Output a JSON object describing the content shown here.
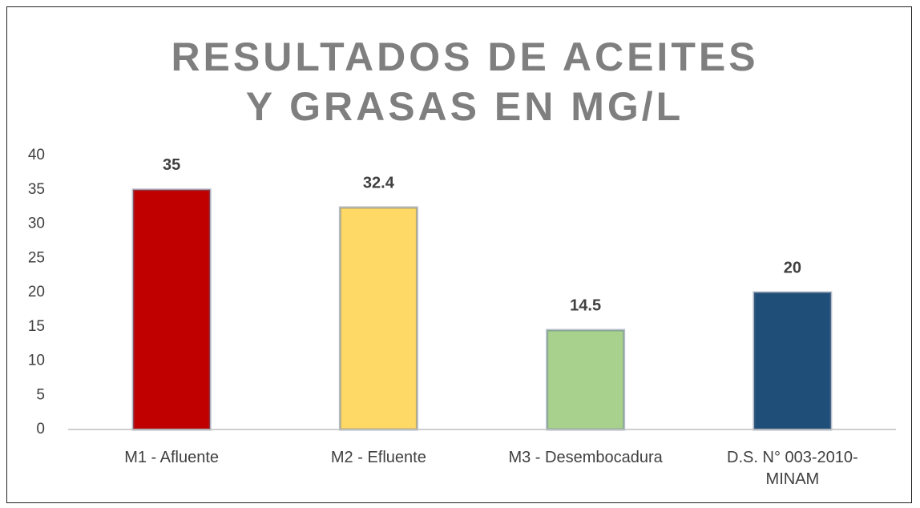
{
  "chart_data": {
    "type": "bar",
    "title": "RESULTADOS DE ACEITES Y GRASAS EN MG/L",
    "categories": [
      "M1 - Afluente",
      "M2 - Efluente",
      "M3 - Desembocadura",
      "D.S. N° 003-2010-MINAM"
    ],
    "values": [
      35,
      32.4,
      14.5,
      20
    ],
    "colors": [
      "#c00000",
      "#ffd966",
      "#a9d18e",
      "#1f4e79"
    ],
    "ylim": [
      0,
      40
    ],
    "yticks": [
      0,
      5,
      10,
      15,
      20,
      25,
      30,
      35,
      40
    ],
    "grid": false
  }
}
